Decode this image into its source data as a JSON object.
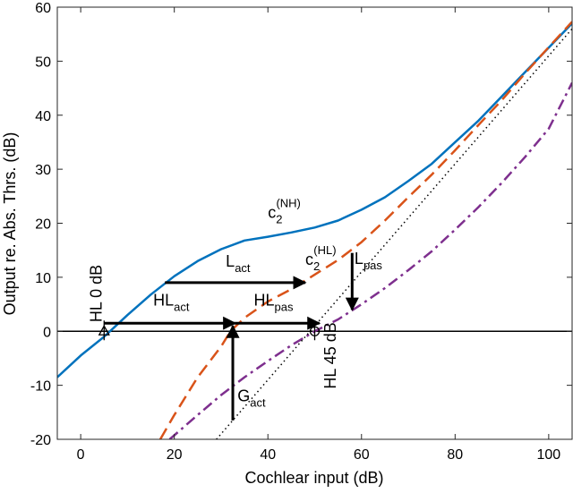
{
  "chart_data": {
    "type": "line",
    "xlabel": "Cochlear input (dB)",
    "ylabel": "Output re. Abs. Thrs. (dB)",
    "xlim": [
      -5,
      105
    ],
    "ylim": [
      -20,
      60
    ],
    "xticks": [
      0,
      20,
      40,
      60,
      80,
      100
    ],
    "yticks": [
      -20,
      -10,
      0,
      10,
      20,
      30,
      40,
      50,
      60
    ],
    "grid": false,
    "series": [
      {
        "name": "c2_NH",
        "style": "solid",
        "color": "#0072BD",
        "x": [
          -5,
          0,
          5,
          10,
          15,
          20,
          25,
          30,
          35,
          40,
          45,
          50,
          55,
          60,
          65,
          70,
          75,
          80,
          85,
          90,
          95,
          100,
          105
        ],
        "y": [
          -8.5,
          -4.5,
          -1,
          3,
          6.8,
          10.2,
          13,
          15.2,
          16.8,
          17.5,
          18.3,
          19.2,
          20.5,
          22.5,
          24.8,
          27.8,
          31,
          35,
          39,
          43.5,
          48,
          52.5,
          57
        ]
      },
      {
        "name": "c2_HL",
        "style": "dashed",
        "color": "#D95319",
        "x": [
          17,
          20,
          25,
          30,
          32,
          35,
          40,
          45,
          50,
          55,
          60,
          65,
          70,
          75,
          80,
          85,
          90,
          95,
          100,
          105
        ],
        "y": [
          -20,
          -15.5,
          -8.5,
          -2.8,
          0,
          2.5,
          5.5,
          7.8,
          10.5,
          13.2,
          16.5,
          20.5,
          24.8,
          29,
          33.5,
          38.2,
          42.8,
          47.8,
          52.6,
          57.3
        ]
      },
      {
        "name": "passive",
        "style": "dashdot",
        "color": "#7E2F8E",
        "x": [
          19,
          25,
          30,
          35,
          40,
          45,
          50,
          55,
          60,
          65,
          70,
          75,
          80,
          85,
          90,
          95,
          100,
          105
        ],
        "y": [
          -20,
          -15.5,
          -11.8,
          -8.5,
          -5.5,
          -2.6,
          0,
          2.2,
          5,
          8,
          11.3,
          14.8,
          18.8,
          23,
          27.5,
          32.3,
          37.5,
          46
        ]
      },
      {
        "name": "linear",
        "style": "dotted",
        "color": "#000000",
        "x": [
          29,
          105
        ],
        "y": [
          -20,
          56
        ]
      }
    ],
    "reference_lines": [
      {
        "name": "zero",
        "y": 0
      }
    ],
    "markers": [
      {
        "name": "triangle-marker",
        "shape": "triangle",
        "x": 5,
        "y": 0
      },
      {
        "name": "circle-marker",
        "shape": "circle",
        "x": 50,
        "y": 0
      }
    ],
    "arrows": [
      {
        "name": "L_act",
        "x1": 18,
        "y1": 9,
        "x2": 48,
        "y2": 9
      },
      {
        "name": "HL_act",
        "x1": 5,
        "y1": 1.5,
        "x2": 33,
        "y2": 1.5
      },
      {
        "name": "HL_pas",
        "x1": 33,
        "y1": 1.5,
        "x2": 51,
        "y2": 1.5
      },
      {
        "name": "G_act",
        "x1": 32.5,
        "y1": -16.5,
        "x2": 32.5,
        "y2": 1
      },
      {
        "name": "L_pas",
        "x1": 58,
        "y1": 14.5,
        "x2": 58,
        "y2": 4
      }
    ],
    "annotations": [
      {
        "key": "hl0",
        "main": "HL 0 dB",
        "x": 4.5,
        "y": 7,
        "rotate": -90
      },
      {
        "key": "hl45",
        "main": "HL 45 dB",
        "x": 54.5,
        "y": -4.5,
        "rotate": -90
      },
      {
        "key": "c2nh",
        "main": "c",
        "sub": "2",
        "sup": "(NH)",
        "x": 40,
        "y": 21
      },
      {
        "key": "c2hl",
        "main": "c",
        "sub": "2",
        "sup": "(HL)",
        "x": 48,
        "y": 12.3
      },
      {
        "key": "lact",
        "main": "L",
        "sub": "act",
        "x": 31,
        "y": 12
      },
      {
        "key": "hlact",
        "main": "HL",
        "sub": "act",
        "x": 15.5,
        "y": 4.8
      },
      {
        "key": "hlpas",
        "main": "HL",
        "sub": "pas",
        "x": 37,
        "y": 4.8
      },
      {
        "key": "lpas",
        "main": "L",
        "sub": "pas",
        "x": 58.5,
        "y": 12.5
      },
      {
        "key": "gact",
        "main": "G",
        "sub": "act",
        "x": 33.5,
        "y": -13
      }
    ]
  }
}
